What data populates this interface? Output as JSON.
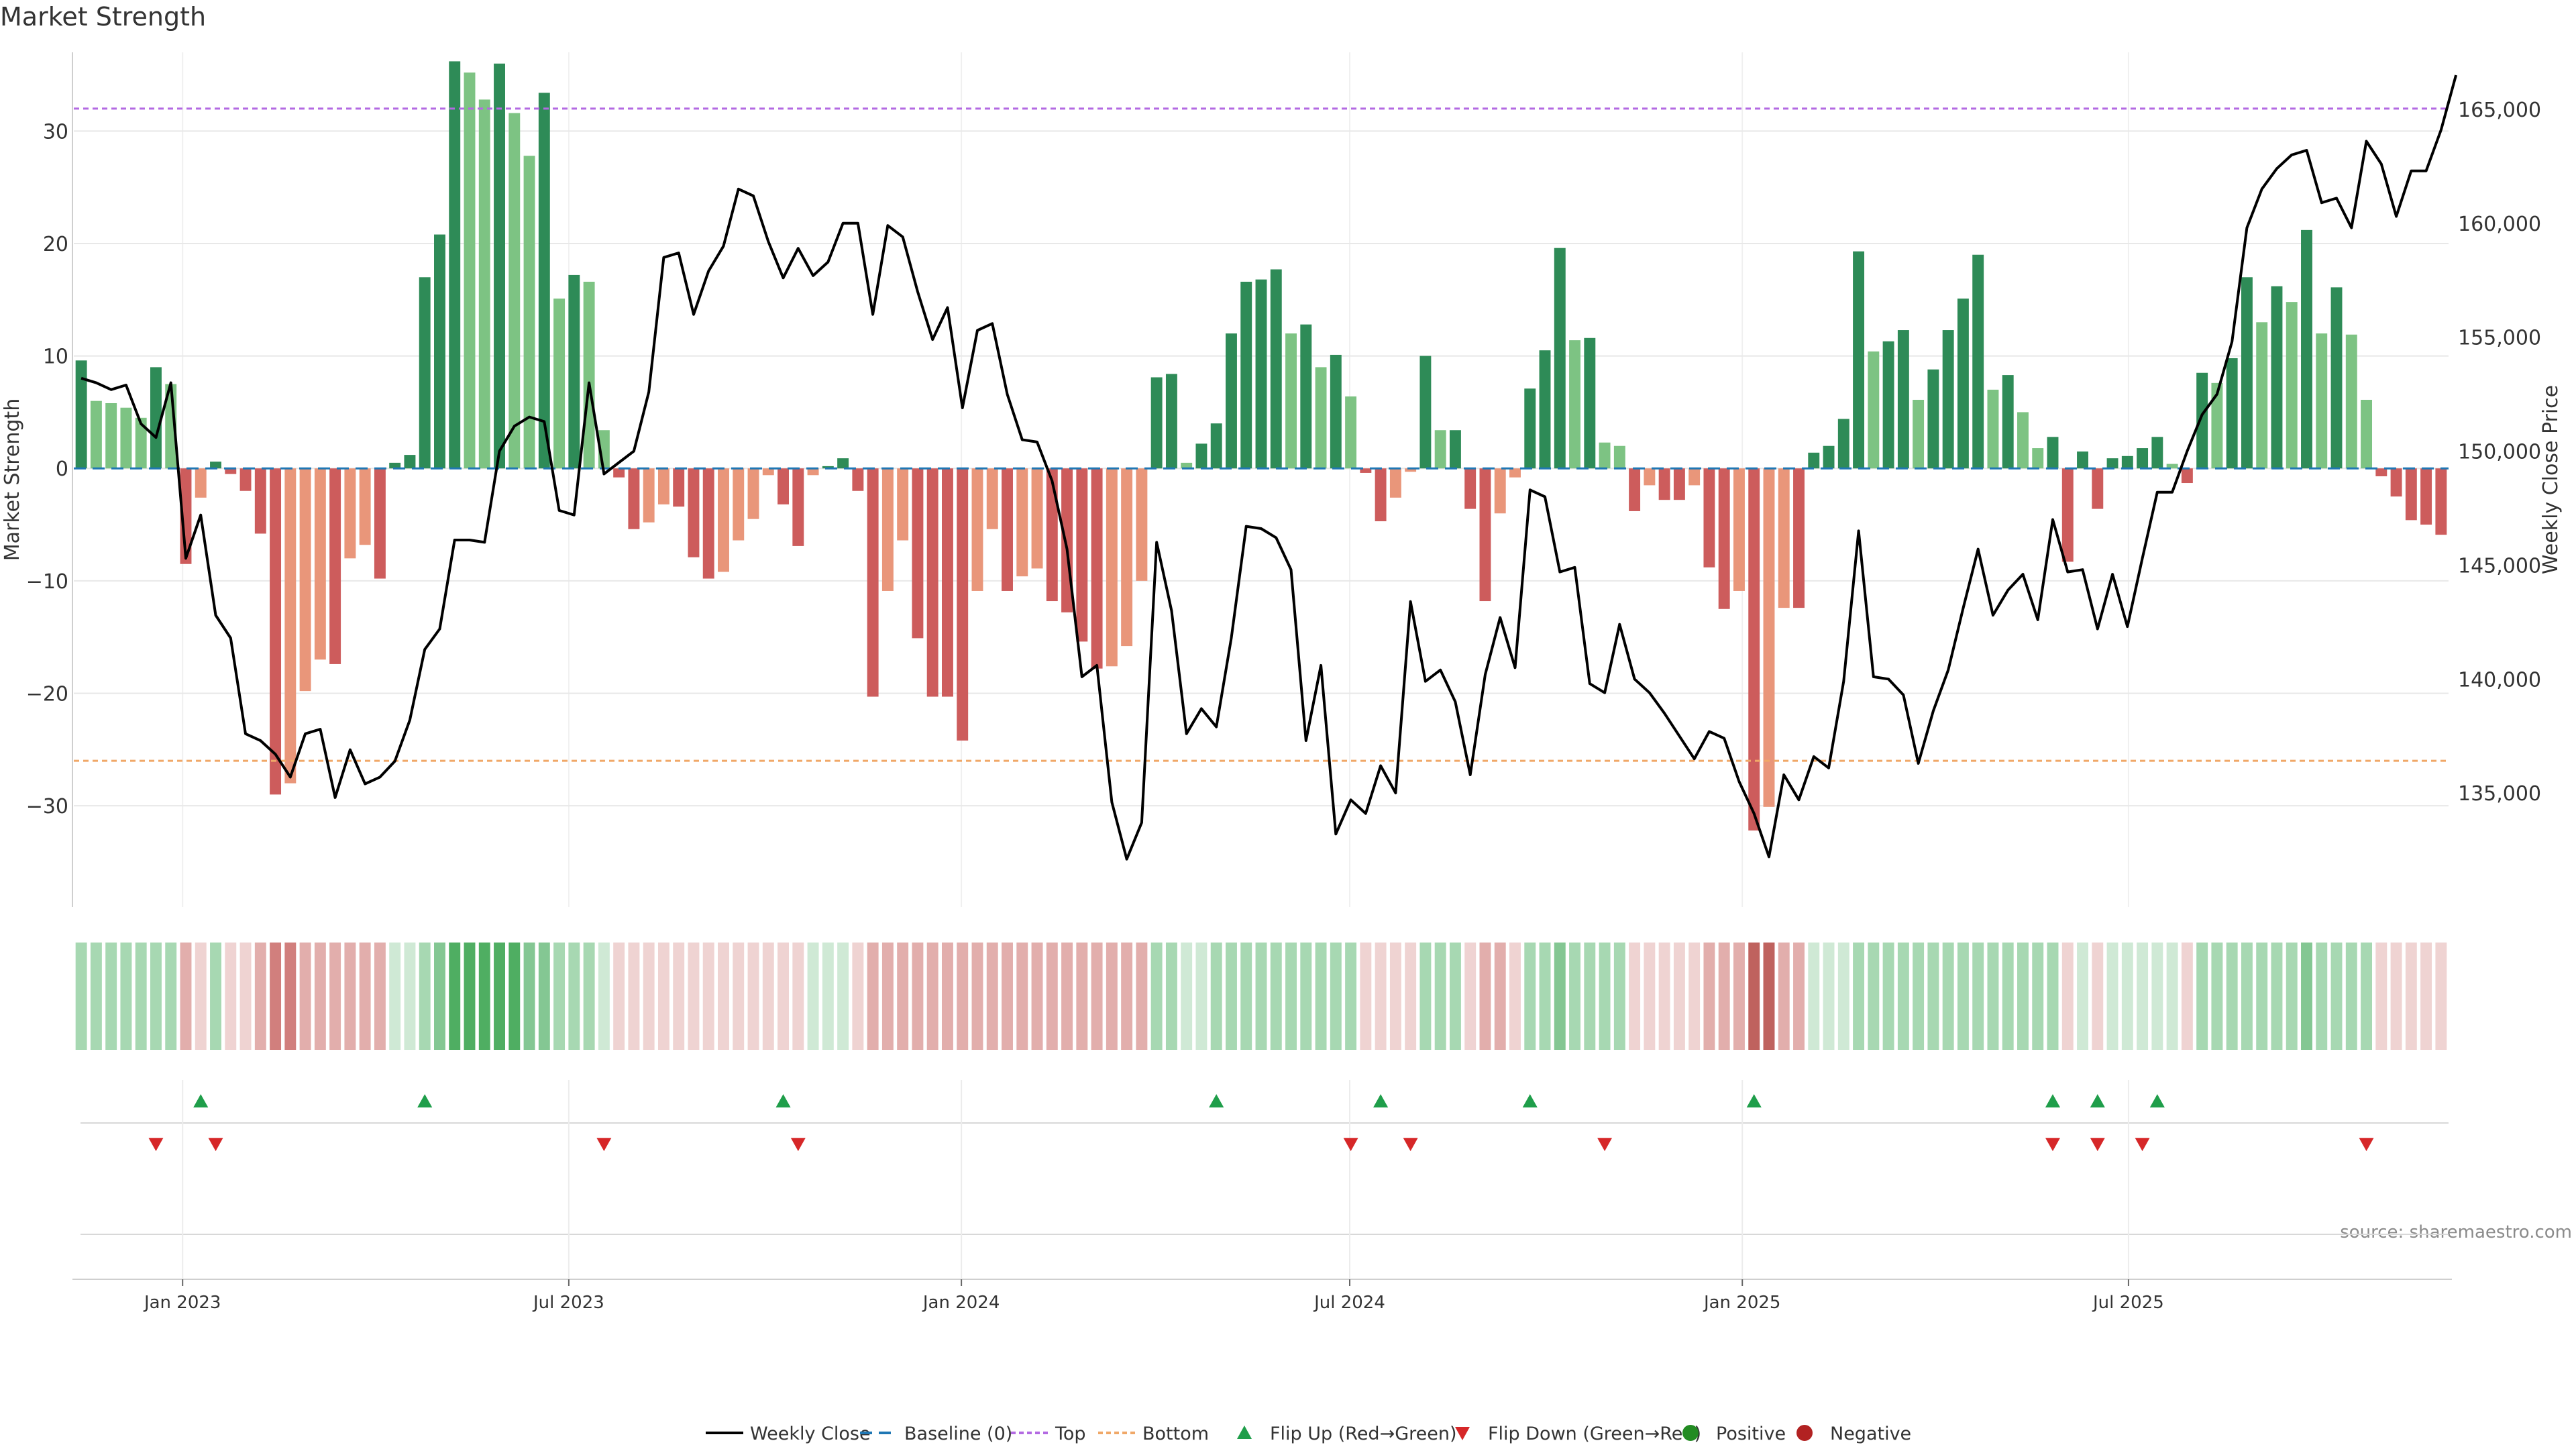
{
  "title": "Market Strength",
  "source": "source: sharemaestro.com",
  "colors": {
    "pos_dark": "#2e8b57",
    "pos_light": "#7dc383",
    "neg_dark": "#cd5c5c",
    "neg_light": "#e9967a",
    "close_line": "#000000",
    "baseline": "#1f77b4",
    "top": "#b36ae2",
    "bottom": "#f0a868",
    "flip_up": "#1f9e4a",
    "flip_down": "#d62728",
    "grid": "#e8e8e8"
  },
  "chart_data": {
    "type": "bar",
    "x_start": "2022-11-11",
    "x_step_days": 7,
    "x_tick_labels": [
      "Jan 2023",
      "Jul 2023",
      "Jan 2024",
      "Jul 2024",
      "Jan 2025",
      "Jul 2025"
    ],
    "x_tick_dates": [
      "2023-01-01",
      "2023-07-01",
      "2024-01-01",
      "2024-07-01",
      "2025-01-01",
      "2025-07-01"
    ],
    "ylabel": "Market Strength",
    "ylim": [
      -39,
      37
    ],
    "y_ticks": [
      30,
      20,
      10,
      0,
      -10,
      -20,
      -30
    ],
    "y_tick_labels": [
      "30",
      "20",
      "10",
      "0",
      "−10",
      "−20",
      "−30"
    ],
    "y2label": "Weekly Close Price",
    "y2lim": [
      130000,
      167500
    ],
    "y2_ticks": [
      165000,
      160000,
      155000,
      150000,
      145000,
      140000,
      135000
    ],
    "y2_tick_labels": [
      "165,000",
      "160,000",
      "155,000",
      "150,000",
      "145,000",
      "140,000",
      "135,000"
    ],
    "top_line": 32,
    "bottom_line": -26,
    "baseline": 0,
    "series": [
      {
        "name": "Market Strength",
        "values": [
          9.6,
          6,
          5.8,
          5.4,
          4.5,
          9,
          7.5,
          -8.5,
          -2.6,
          0.6,
          -0.5,
          -2,
          -5.8,
          -29,
          -28,
          -19.8,
          -17,
          -17.4,
          -8,
          -6.8,
          -9.8,
          0.5,
          1.2,
          17,
          20.8,
          36.2,
          35.2,
          32.8,
          36,
          31.6,
          27.8,
          33.4,
          15.1,
          17.2,
          16.6,
          3.4,
          -0.8,
          -5.4,
          -4.8,
          -3.2,
          -3.4,
          -7.9,
          -9.8,
          -9.2,
          -6.4,
          -4.5,
          -0.6,
          -3.2,
          -6.9,
          -0.6,
          0.2,
          0.9,
          -2,
          -20.3,
          -10.9,
          -6.4,
          -15.1,
          -20.3,
          -20.3,
          -24.2,
          -10.9,
          -5.4,
          -10.9,
          -9.6,
          -8.9,
          -11.8,
          -12.8,
          -15.4,
          -17.8,
          -17.6,
          -15.8,
          -10,
          8.1,
          8.4,
          0.5,
          2.2,
          4,
          12,
          16.6,
          16.8,
          17.7,
          12,
          12.8,
          9,
          10.1,
          6.4,
          -0.4,
          -4.7,
          -2.6,
          -0.3,
          10,
          3.4,
          3.4,
          -3.6,
          -11.8,
          -4,
          -0.8,
          7.1,
          10.5,
          19.6,
          11.4,
          11.6,
          2.3,
          2,
          -3.8,
          -1.5,
          -2.8,
          -2.8,
          -1.5,
          -8.8,
          -12.5,
          -10.9,
          -32.2,
          -30.1,
          -12.4,
          -12.4,
          1.4,
          2,
          4.4,
          19.3,
          10.4,
          11.3,
          12.3,
          6.1,
          8.8,
          12.3,
          15.1,
          19,
          7,
          8.3,
          5,
          1.8,
          2.8,
          -8.3,
          1.5,
          -3.6,
          0.9,
          1.1,
          1.8,
          2.8,
          0.4,
          -1.3,
          8.5,
          7.6,
          9.8,
          17,
          13,
          16.2,
          14.8,
          21.2,
          12,
          16.1,
          11.9,
          6.1,
          -0.7,
          -2.5,
          -4.6,
          -5,
          -5.9
        ]
      },
      {
        "name": "Weekly Close",
        "values": [
          153200,
          153000,
          152700,
          152900,
          151200,
          150600,
          153000,
          145300,
          147200,
          142800,
          141800,
          137600,
          137300,
          136700,
          135700,
          137600,
          137800,
          134800,
          136900,
          135400,
          135700,
          136400,
          138200,
          141300,
          142200,
          146100,
          146100,
          146000,
          150000,
          151100,
          151500,
          151300,
          147400,
          147200,
          153000,
          149000,
          149500,
          150000,
          152600,
          158500,
          158700,
          156000,
          157900,
          159000,
          161500,
          161200,
          159200,
          157600,
          158900,
          157700,
          158300,
          160000,
          160000,
          156000,
          159900,
          159400,
          157000,
          154900,
          156300,
          151900,
          155300,
          155600,
          152500,
          150500,
          150400,
          148700,
          145700,
          140100,
          140600,
          134600,
          132100,
          133700,
          146000,
          143000,
          137600,
          138700,
          137900,
          141800,
          146700,
          146600,
          146200,
          144800,
          137300,
          140600,
          133200,
          134700,
          134100,
          136200,
          135000,
          143400,
          139900,
          140400,
          139000,
          135800,
          140200,
          142700,
          140500,
          148300,
          148000,
          144700,
          144900,
          139800,
          139400,
          142400,
          140000,
          139400,
          138500,
          137500,
          136500,
          137700,
          137400,
          135500,
          134100,
          132200,
          135800,
          134700,
          136600,
          136100,
          139900,
          146500,
          140100,
          140000,
          139300,
          136300,
          138600,
          140400,
          143100,
          145700,
          142800,
          143900,
          144600,
          142600,
          147000,
          144700,
          144800,
          142200,
          144600,
          142300,
          145300,
          148200,
          148200,
          150000,
          151600,
          152500,
          154800,
          159800,
          161500,
          162400,
          163000,
          163200,
          160900,
          161100,
          159800,
          163600,
          162600,
          160300,
          162300,
          162300,
          164100,
          166500
        ]
      }
    ],
    "heat_strip_grades": [
      2,
      2,
      2,
      2,
      2,
      2,
      2,
      -2,
      -1,
      2,
      -1,
      -1,
      -2,
      -3,
      -3,
      -2,
      -2,
      -2,
      -2,
      -2,
      -2,
      1,
      1,
      2,
      3,
      4,
      4,
      4,
      4,
      4,
      3,
      3,
      2,
      2,
      2,
      1,
      -1,
      -1,
      -1,
      -1,
      -1,
      -1,
      -1,
      -1,
      -1,
      -1,
      -1,
      -1,
      -1,
      1,
      1,
      1,
      -1,
      -2,
      -2,
      -2,
      -2,
      -2,
      -2,
      -2,
      -2,
      -2,
      -2,
      -2,
      -2,
      -2,
      -2,
      -2,
      -2,
      -2,
      -2,
      -2,
      2,
      2,
      1,
      1,
      2,
      2,
      2,
      2,
      2,
      2,
      2,
      2,
      2,
      2,
      -1,
      -1,
      -1,
      -1,
      2,
      2,
      2,
      -1,
      -2,
      -2,
      -1,
      2,
      2,
      3,
      2,
      2,
      2,
      2,
      -1,
      -1,
      -1,
      -1,
      -1,
      -2,
      -2,
      -2,
      -4,
      -4,
      -2,
      -2,
      1,
      1,
      1,
      2,
      2,
      2,
      2,
      2,
      2,
      2,
      2,
      2,
      2,
      2,
      2,
      2,
      2,
      -1,
      1,
      -1,
      1,
      1,
      1,
      1,
      1,
      -1,
      2,
      2,
      2,
      2,
      2,
      2,
      2,
      3,
      2,
      2,
      2,
      2,
      -1,
      -1,
      -1,
      -1,
      -1
    ],
    "flip_up_dates": [
      "2023-01-06",
      "2023-04-21",
      "2023-10-06",
      "2024-04-26",
      "2024-07-12",
      "2024-09-20",
      "2025-01-03",
      "2025-05-23",
      "2025-06-13",
      "2025-07-11"
    ],
    "flip_down_dates": [
      "2022-12-16",
      "2023-01-13",
      "2023-07-14",
      "2023-10-13",
      "2024-06-28",
      "2024-07-26",
      "2024-10-25",
      "2025-05-23",
      "2025-06-13",
      "2025-07-04",
      "2025-10-17"
    ],
    "legend": [
      "Weekly Close",
      "Baseline (0)",
      "Top",
      "Bottom",
      "Flip Up (Red→Green)",
      "Flip Down (Green→Red)",
      "Positive",
      "Negative"
    ],
    "legend_placement": "bottom-center",
    "grid": true
  }
}
